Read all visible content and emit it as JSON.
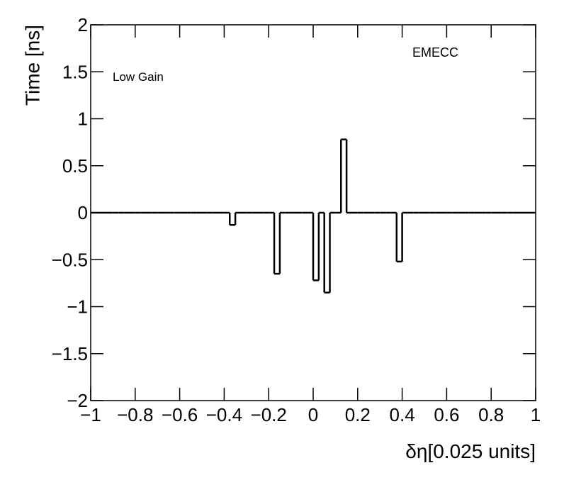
{
  "chart_data": {
    "type": "histogram",
    "x_label": "δη[0.025 units]",
    "y_label": "Time [ns]",
    "annotations": [
      "Low Gain",
      "EMECC"
    ],
    "color": "#000000",
    "bins": [
      -1,
      -0.975,
      -0.95,
      -0.925,
      -0.9,
      -0.875,
      -0.85,
      -0.825,
      -0.8,
      -0.775,
      -0.75,
      -0.725,
      -0.7,
      -0.675,
      -0.65,
      -0.625,
      -0.6,
      -0.575,
      -0.55,
      -0.525,
      -0.5,
      -0.475,
      -0.45,
      -0.425,
      -0.4,
      -0.375,
      -0.35,
      -0.325,
      -0.3,
      -0.275,
      -0.25,
      -0.225,
      -0.2,
      -0.175,
      -0.15,
      -0.125,
      -0.1,
      -0.075,
      -0.05,
      -0.025,
      0,
      0.025,
      0.05,
      0.075,
      0.1,
      0.125,
      0.15,
      0.175,
      0.2,
      0.225,
      0.25,
      0.275,
      0.3,
      0.325,
      0.35,
      0.375,
      0.4,
      0.425,
      0.45,
      0.475,
      0.5,
      0.525,
      0.55,
      0.575,
      0.6,
      0.625,
      0.65,
      0.675,
      0.7,
      0.725,
      0.75,
      0.775,
      0.8,
      0.825,
      0.85,
      0.875,
      0.9,
      0.925,
      0.95,
      0.975,
      1
    ],
    "values": [
      0,
      0,
      0,
      0,
      0,
      0,
      0,
      0,
      0,
      0,
      0,
      0,
      0,
      0,
      0,
      0,
      0,
      0,
      0,
      0,
      0,
      0,
      0,
      0,
      0,
      -0.13,
      0,
      0,
      0,
      0,
      0,
      0,
      0,
      -0.65,
      0,
      0,
      0,
      0,
      0,
      0,
      -0.72,
      0,
      -0.85,
      0,
      0,
      0.78,
      0,
      0,
      0,
      0,
      0,
      0,
      0,
      0,
      0,
      -0.52,
      0,
      0,
      0,
      0,
      0,
      0,
      0,
      0,
      0,
      0,
      0,
      0,
      0,
      0,
      0,
      0,
      0,
      0,
      0,
      0,
      0,
      0,
      0,
      0
    ],
    "xlim": [
      -1,
      1
    ],
    "ylim": [
      -2,
      2
    ],
    "xticks": [
      {
        "value": -1,
        "label": "−1"
      },
      {
        "value": -0.8,
        "label": "−0.8"
      },
      {
        "value": -0.6,
        "label": "−0.6"
      },
      {
        "value": -0.4,
        "label": "−0.4"
      },
      {
        "value": -0.2,
        "label": "−0.2"
      },
      0,
      0.2,
      0.4,
      0.6,
      0.8,
      1
    ],
    "yticks": [
      {
        "value": -2,
        "label": "−2"
      },
      {
        "value": -1.5,
        "label": "−1.5"
      },
      {
        "value": -1,
        "label": "−1"
      },
      {
        "value": -0.5,
        "label": "−0.5"
      },
      0,
      0.5,
      1,
      1.5,
      2
    ],
    "grid": false
  }
}
